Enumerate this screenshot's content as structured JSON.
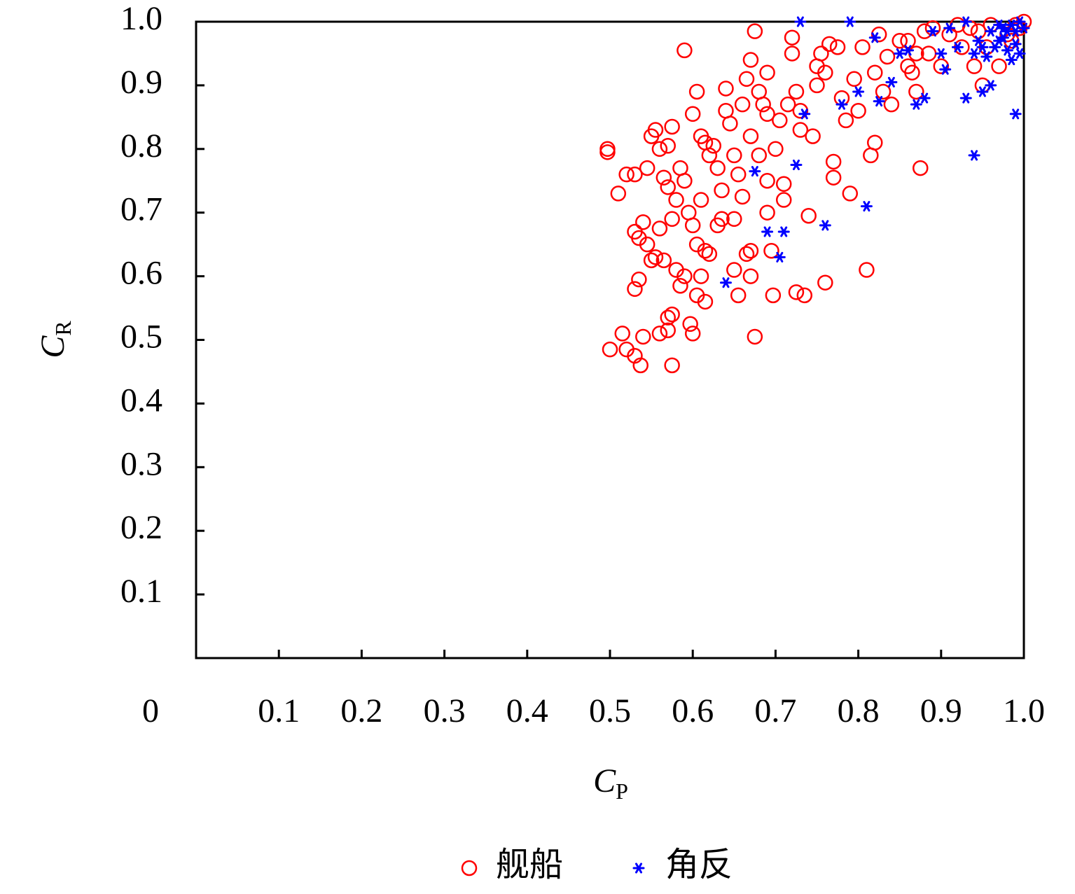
{
  "chart_data": {
    "type": "scatter",
    "xlabel": {
      "symbol": "C",
      "subscript": "P"
    },
    "ylabel": {
      "symbol": "C",
      "subscript": "R"
    },
    "xlim": [
      0,
      1
    ],
    "ylim": [
      0,
      1
    ],
    "xticks": [
      0,
      0.1,
      0.2,
      0.3,
      0.4,
      0.5,
      0.6,
      0.7,
      0.8,
      0.9,
      {
        "value": 1,
        "label": "1.0"
      }
    ],
    "yticks": [
      0.1,
      0.2,
      0.3,
      0.4,
      0.5,
      0.6,
      0.7,
      0.8,
      0.9,
      {
        "value": 1,
        "label": "1.0"
      }
    ],
    "legend": "bottom",
    "series": [
      {
        "name": "舰船",
        "color": "#ff0000",
        "marker": "circle",
        "x": [
          0.497,
          0.497,
          0.51,
          0.52,
          0.53,
          0.545,
          0.5,
          0.515,
          0.52,
          0.53,
          0.537,
          0.54,
          0.53,
          0.535,
          0.53,
          0.535,
          0.54,
          0.545,
          0.55,
          0.555,
          0.56,
          0.565,
          0.55,
          0.555,
          0.56,
          0.57,
          0.575,
          0.565,
          0.57,
          0.575,
          0.58,
          0.585,
          0.59,
          0.59,
          0.6,
          0.595,
          0.6,
          0.605,
          0.61,
          0.615,
          0.62,
          0.56,
          0.57,
          0.575,
          0.57,
          0.575,
          0.58,
          0.585,
          0.59,
          0.597,
          0.6,
          0.605,
          0.61,
          0.615,
          0.605,
          0.61,
          0.615,
          0.62,
          0.625,
          0.63,
          0.635,
          0.63,
          0.635,
          0.64,
          0.64,
          0.645,
          0.65,
          0.655,
          0.65,
          0.65,
          0.655,
          0.66,
          0.665,
          0.67,
          0.67,
          0.675,
          0.66,
          0.665,
          0.67,
          0.675,
          0.68,
          0.685,
          0.69,
          0.69,
          0.67,
          0.68,
          0.69,
          0.69,
          0.695,
          0.697,
          0.7,
          0.705,
          0.71,
          0.71,
          0.715,
          0.72,
          0.72,
          0.725,
          0.73,
          0.73,
          0.725,
          0.735,
          0.74,
          0.745,
          0.75,
          0.75,
          0.755,
          0.76,
          0.765,
          0.76,
          0.77,
          0.77,
          0.775,
          0.78,
          0.785,
          0.79,
          0.795,
          0.8,
          0.805,
          0.81,
          0.815,
          0.82,
          0.82,
          0.825,
          0.83,
          0.835,
          0.84,
          0.85,
          0.86,
          0.865,
          0.87,
          0.875,
          0.88,
          0.885,
          0.89,
          0.9,
          0.91,
          0.92,
          0.925,
          0.935,
          0.94,
          0.95,
          0.96,
          0.97,
          0.98,
          0.99,
          0.995,
          1.0,
          0.985,
          0.955,
          0.945,
          0.87,
          0.86
        ],
        "y": [
          0.8,
          0.795,
          0.73,
          0.76,
          0.76,
          0.77,
          0.485,
          0.51,
          0.485,
          0.475,
          0.46,
          0.505,
          0.58,
          0.595,
          0.67,
          0.66,
          0.685,
          0.65,
          0.625,
          0.63,
          0.675,
          0.625,
          0.82,
          0.83,
          0.8,
          0.805,
          0.835,
          0.755,
          0.74,
          0.69,
          0.72,
          0.77,
          0.75,
          0.955,
          0.855,
          0.7,
          0.68,
          0.65,
          0.72,
          0.64,
          0.635,
          0.51,
          0.515,
          0.54,
          0.535,
          0.46,
          0.61,
          0.585,
          0.6,
          0.525,
          0.51,
          0.57,
          0.6,
          0.56,
          0.89,
          0.82,
          0.81,
          0.79,
          0.805,
          0.77,
          0.735,
          0.68,
          0.69,
          0.86,
          0.895,
          0.84,
          0.79,
          0.76,
          0.61,
          0.69,
          0.57,
          0.725,
          0.635,
          0.64,
          0.6,
          0.505,
          0.87,
          0.91,
          0.94,
          0.985,
          0.89,
          0.87,
          0.92,
          0.855,
          0.82,
          0.79,
          0.75,
          0.7,
          0.64,
          0.57,
          0.8,
          0.845,
          0.72,
          0.745,
          0.87,
          0.95,
          0.975,
          0.89,
          0.86,
          0.83,
          0.575,
          0.57,
          0.695,
          0.82,
          0.9,
          0.93,
          0.95,
          0.92,
          0.965,
          0.59,
          0.755,
          0.78,
          0.96,
          0.88,
          0.845,
          0.73,
          0.91,
          0.86,
          0.96,
          0.61,
          0.79,
          0.81,
          0.92,
          0.98,
          0.89,
          0.945,
          0.87,
          0.97,
          0.93,
          0.92,
          0.89,
          0.77,
          0.985,
          0.95,
          0.99,
          0.93,
          0.98,
          0.995,
          0.96,
          0.99,
          0.93,
          0.9,
          0.995,
          0.93,
          0.98,
          0.995,
          0.99,
          1.0,
          0.97,
          0.96,
          0.985,
          0.95,
          0.97
        ]
      },
      {
        "name": "角反",
        "color": "#0000ff",
        "marker": "asterisk",
        "x": [
          0.64,
          0.675,
          0.69,
          0.71,
          0.705,
          0.725,
          0.73,
          0.735,
          0.76,
          0.78,
          0.79,
          0.8,
          0.81,
          0.82,
          0.825,
          0.84,
          0.85,
          0.86,
          0.87,
          0.88,
          0.89,
          0.9,
          0.905,
          0.91,
          0.92,
          0.93,
          0.93,
          0.94,
          0.945,
          0.95,
          0.955,
          0.96,
          0.96,
          0.965,
          0.97,
          0.975,
          0.98,
          0.98,
          0.985,
          0.99,
          0.99,
          0.995,
          0.99,
          0.995,
          1.0,
          0.97,
          0.95,
          0.94,
          0.985,
          0.975
        ],
        "y": [
          0.59,
          0.765,
          0.67,
          0.67,
          0.63,
          0.775,
          1.0,
          0.855,
          0.68,
          0.87,
          1.0,
          0.89,
          0.71,
          0.975,
          0.875,
          0.905,
          0.95,
          0.955,
          0.87,
          0.88,
          0.985,
          0.95,
          0.925,
          0.99,
          0.96,
          1.0,
          0.88,
          0.79,
          0.97,
          0.89,
          0.945,
          0.9,
          0.985,
          0.96,
          0.995,
          0.975,
          0.985,
          0.955,
          0.995,
          0.965,
          0.985,
          1.0,
          0.855,
          0.95,
          0.99,
          0.97,
          0.96,
          0.95,
          0.94,
          0.99
        ]
      }
    ]
  }
}
